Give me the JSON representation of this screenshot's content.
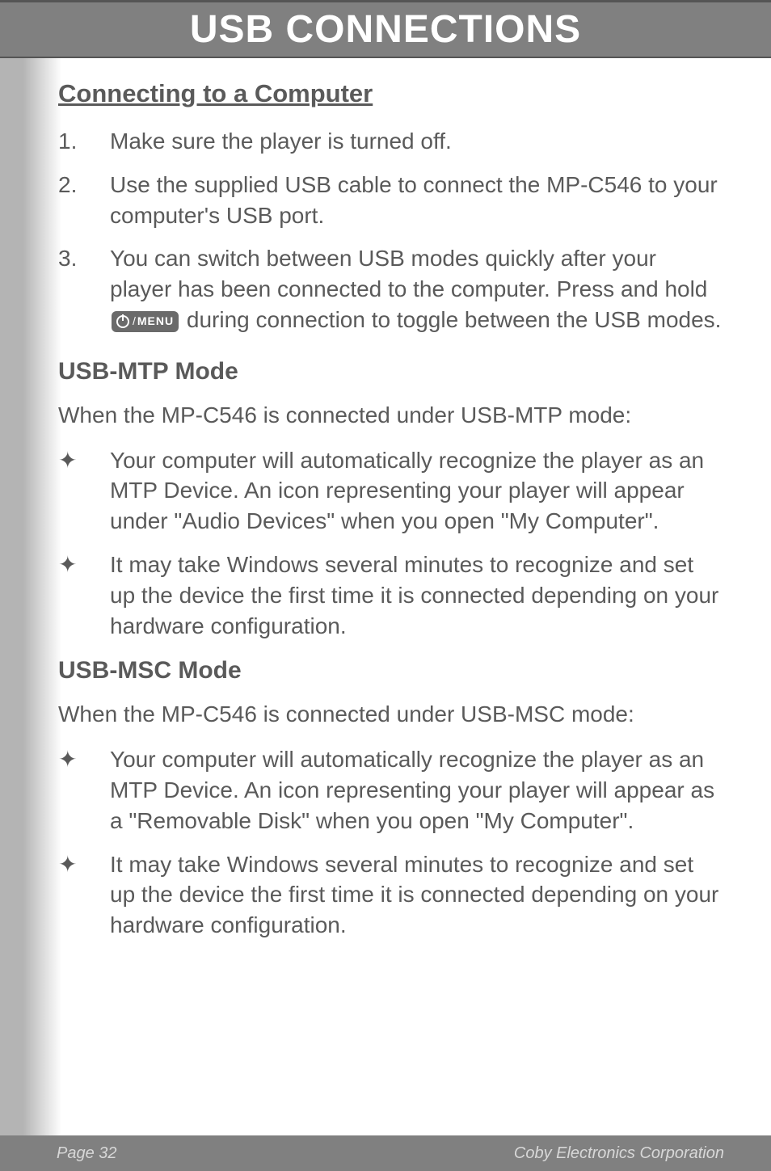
{
  "header": {
    "title": "USB CONNECTIONS"
  },
  "section1": {
    "heading": "Connecting to a Computer",
    "items": [
      {
        "num": "1.",
        "text": "Make sure the player is turned off."
      },
      {
        "num": "2.",
        "text": "Use the supplied USB cable to connect the MP-C546 to your computer's USB port."
      },
      {
        "num": "3.",
        "text_before": "You can switch between USB modes quickly after your player has been connected to the computer. Press and hold ",
        "text_after": " during connection to toggle between the USB modes.",
        "button_label": "MENU"
      }
    ]
  },
  "section2": {
    "heading": "USB-MTP Mode",
    "intro": "When the MP-C546 is connected under USB-MTP mode:",
    "bullets": [
      "Your computer will automatically recognize the player as an MTP Device.  An icon representing your player will appear under \"Audio Devices\" when you open \"My Computer\".",
      "It may take Windows several minutes to recognize and set up the device the first time it is connected depending on your hardware configuration."
    ]
  },
  "section3": {
    "heading": "USB-MSC Mode",
    "intro": "When the MP-C546 is connected under USB-MSC mode:",
    "bullets": [
      "Your computer will automatically recognize the player as an MTP Device.  An icon representing your player will appear as a \"Removable Disk\" when you open \"My Computer\".",
      "It may take Windows several minutes to recognize and set up the device the first time it is connected depending on your hardware configuration."
    ]
  },
  "footer": {
    "page": "Page 32",
    "company": "Coby Electronics Corporation"
  },
  "styling": {
    "header_bg": "#808080",
    "header_text": "#ffffff",
    "body_text_color": "#5a5a5a",
    "footer_bg": "#808080",
    "footer_text": "#d8d8d8",
    "body_bg_gradient_start": "#b4b4b4",
    "body_bg_gradient_end": "#ffffff",
    "header_font_size": 48,
    "section_heading_font_size": 31,
    "subsection_heading_font_size": 30,
    "body_font_size": 28,
    "footer_font_size": 20
  }
}
